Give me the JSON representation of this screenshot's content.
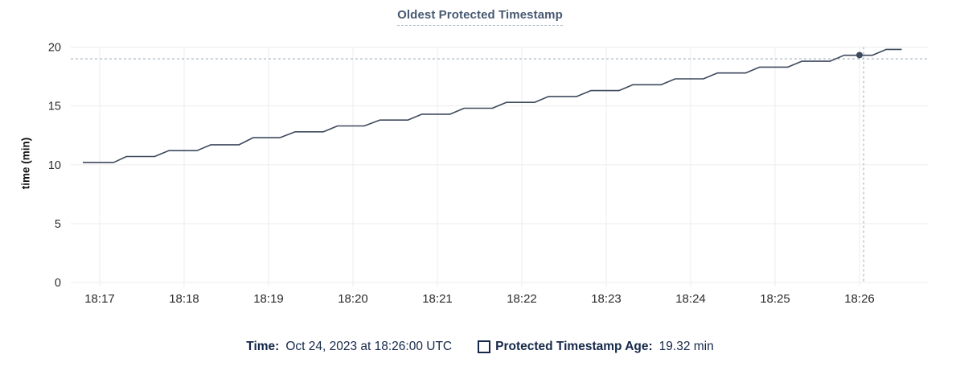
{
  "title": "Oldest Protected Timestamp",
  "y_axis": {
    "label": "time (min)"
  },
  "legend": {
    "time_label": "Time:",
    "time_value": "Oct 24, 2023 at 18:26:00 UTC",
    "series_swatch_icon": "square-outline-icon",
    "series_label": "Protected Timestamp Age:",
    "series_value": "19.32 min"
  },
  "colors": {
    "line": "#3e4a5e",
    "grid": "#ededed",
    "crosshair": "#a7bac6",
    "title_text": "#475872",
    "legend_text": "#152849",
    "tick_text": "#2b2b2b"
  },
  "chart_data": {
    "type": "line",
    "title": "Oldest Protected Timestamp",
    "xlabel": "",
    "ylabel": "time (min)",
    "ylim": [
      0,
      20
    ],
    "y_ticks": [
      0,
      5,
      10,
      15,
      20
    ],
    "x_tick_labels": [
      "18:17",
      "18:18",
      "18:19",
      "18:20",
      "18:21",
      "18:22",
      "18:23",
      "18:24",
      "18:25",
      "18:26"
    ],
    "x_tick_seconds": [
      0,
      60,
      120,
      180,
      240,
      300,
      360,
      420,
      480,
      540
    ],
    "x_window_seconds": [
      -21,
      589
    ],
    "grid": true,
    "legend_position": "bottom",
    "series": [
      {
        "name": "Protected Timestamp Age",
        "unit": "min",
        "color": "#3e4a5e",
        "points": [
          [
            -12,
            10.2
          ],
          [
            10,
            10.2
          ],
          [
            19,
            10.7
          ],
          [
            39,
            10.7
          ],
          [
            49,
            11.2
          ],
          [
            69,
            11.2
          ],
          [
            79,
            11.7
          ],
          [
            99,
            11.7
          ],
          [
            109,
            12.3
          ],
          [
            128,
            12.3
          ],
          [
            139,
            12.8
          ],
          [
            159,
            12.8
          ],
          [
            169,
            13.3
          ],
          [
            188,
            13.3
          ],
          [
            199,
            13.8
          ],
          [
            219,
            13.8
          ],
          [
            229,
            14.3
          ],
          [
            249,
            14.3
          ],
          [
            259,
            14.8
          ],
          [
            279,
            14.8
          ],
          [
            289,
            15.3
          ],
          [
            309,
            15.3
          ],
          [
            319,
            15.8
          ],
          [
            339,
            15.8
          ],
          [
            349,
            16.3
          ],
          [
            369,
            16.3
          ],
          [
            379,
            16.8
          ],
          [
            399,
            16.8
          ],
          [
            409,
            17.3
          ],
          [
            429,
            17.3
          ],
          [
            439,
            17.8
          ],
          [
            459,
            17.8
          ],
          [
            469,
            18.3
          ],
          [
            489,
            18.3
          ],
          [
            499,
            18.8
          ],
          [
            519,
            18.8
          ],
          [
            529,
            19.3
          ],
          [
            549,
            19.3
          ],
          [
            559,
            19.8
          ],
          [
            570,
            19.8
          ]
        ]
      }
    ],
    "crosshair": {
      "hover_time_label": "18:26:00",
      "vline_x_seconds": 543,
      "hline_y_min": 19.0,
      "highlighted_point": {
        "x_seconds": 540,
        "y_min": 19.32
      }
    }
  }
}
